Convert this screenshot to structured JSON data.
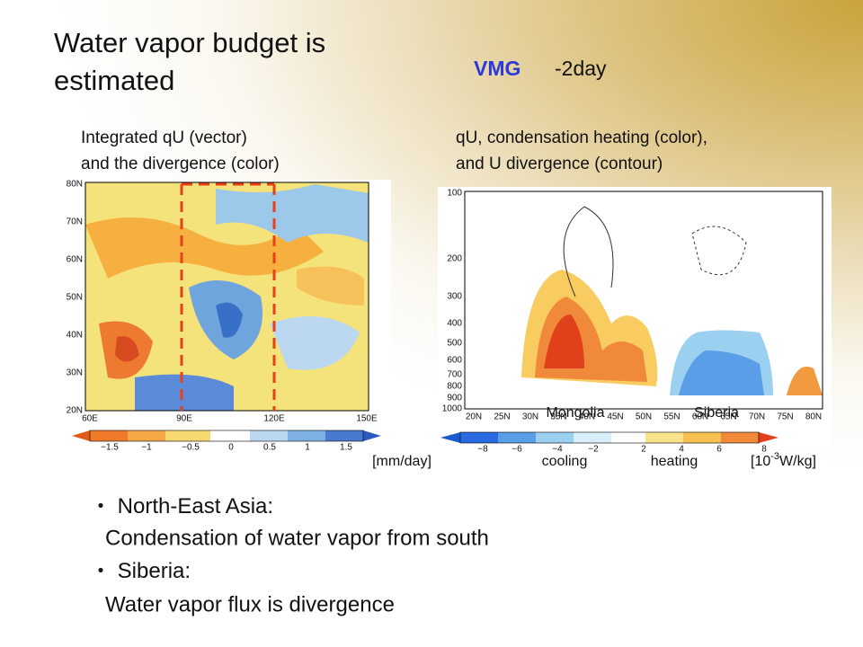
{
  "title": [
    "Water vapor budget is",
    "estimated"
  ],
  "tag": {
    "name": "VMG",
    "period": "-2day"
  },
  "left_panel": {
    "caption": [
      "Integrated qU (vector)",
      "and the divergence (color)"
    ],
    "y_labels": [
      "80N",
      "70N",
      "60N",
      "50N",
      "40N",
      "30N",
      "20N"
    ],
    "x_labels": [
      "60E",
      "90E",
      "120E",
      "150E"
    ],
    "colorbar_labels": [
      "−1.5",
      "−1",
      "−0.5",
      "0",
      "0.5",
      "1",
      "1.5"
    ],
    "units": "[mm/day]"
  },
  "right_panel": {
    "caption": [
      "qU, condensation heating (color),",
      "and U divergence (contour)"
    ],
    "y_labels": [
      "100",
      "200",
      "300",
      "400",
      "500",
      "600",
      "700",
      "800",
      "900",
      "1000"
    ],
    "x_labels": [
      "20N",
      "25N",
      "30N",
      "35N",
      "40N",
      "45N",
      "50N",
      "55N",
      "60N",
      "65N",
      "70N",
      "75N",
      "80N"
    ],
    "regions": [
      "Mongolia",
      "Siberia"
    ],
    "colorbar_labels": [
      "−8",
      "−6",
      "−4",
      "−2",
      "2",
      "4",
      "6",
      "8"
    ],
    "cooling": "cooling",
    "heating": "heating",
    "units": {
      "base": "[10",
      "sup": "-3",
      "rest": "W/kg]"
    }
  },
  "bullets": [
    {
      "heading": "North-East Asia:",
      "text": "Condensation of water vapor from south"
    },
    {
      "heading": "Siberia:",
      "text": "Water vapor flux is divergence"
    }
  ]
}
